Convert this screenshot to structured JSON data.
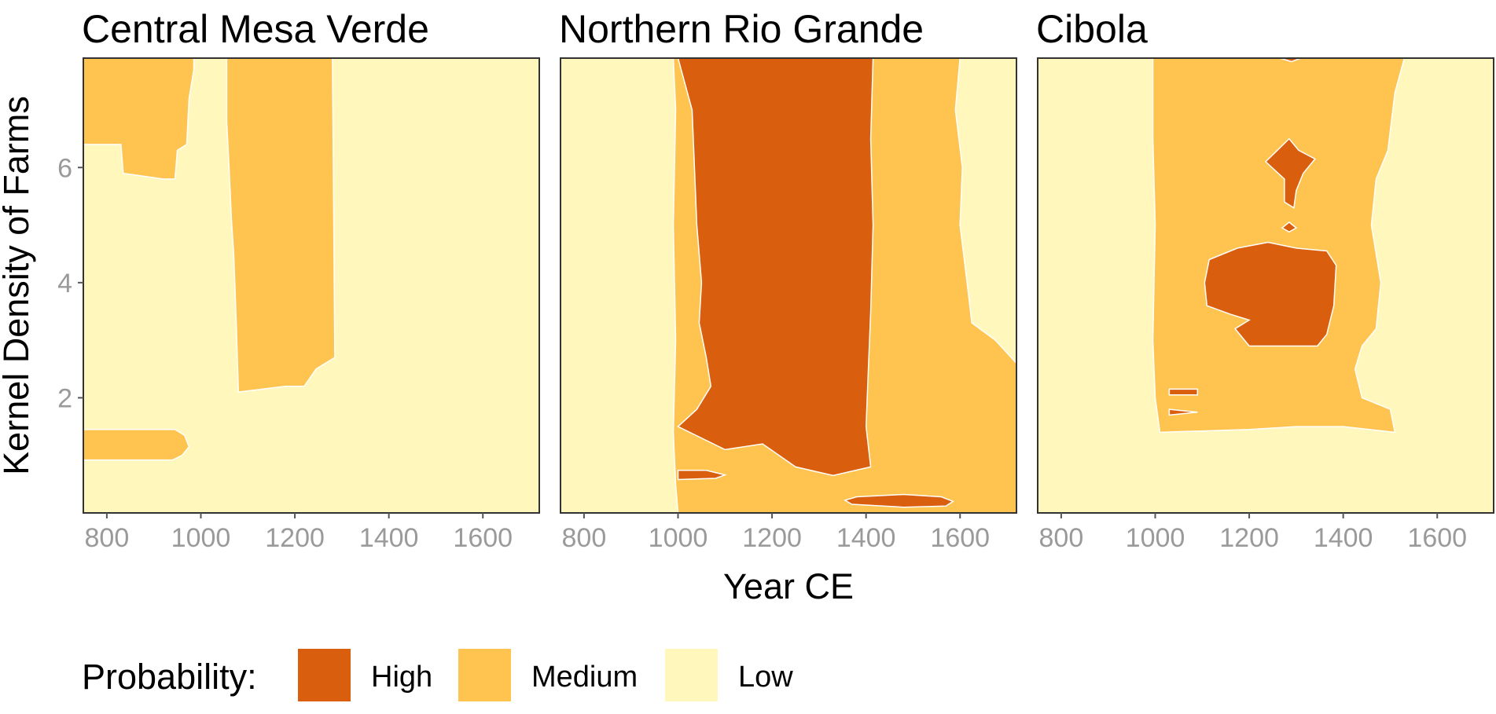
{
  "chart_data": {
    "type": "heatmap",
    "xlabel": "Year CE",
    "ylabel": "Kernel Density of Farms",
    "xlim": [
      750,
      1720
    ],
    "ylim": [
      0,
      7.9
    ],
    "x_ticks": [
      800,
      1000,
      1200,
      1400,
      1600
    ],
    "y_ticks": [
      2,
      4,
      6
    ],
    "grid": false,
    "legend": {
      "title": "Probability:",
      "position": "bottom",
      "entries": [
        {
          "label": "High",
          "color": "#d95f0e"
        },
        {
          "label": "Medium",
          "color": "#fec44f"
        },
        {
          "label": "Low",
          "color": "#fff7bc"
        }
      ]
    },
    "panels": [
      {
        "title": "Central Mesa Verde",
        "background": "low",
        "regions": [
          {
            "level": "medium",
            "points": [
              [
                750,
                6.4
              ],
              [
                830,
                6.4
              ],
              [
                835,
                5.9
              ],
              [
                920,
                5.8
              ],
              [
                945,
                5.8
              ],
              [
                950,
                6.3
              ],
              [
                970,
                6.4
              ],
              [
                975,
                7.2
              ],
              [
                985,
                7.7
              ],
              [
                985,
                7.9
              ],
              [
                750,
                7.9
              ]
            ]
          },
          {
            "level": "medium",
            "points": [
              [
                750,
                1.45
              ],
              [
                945,
                1.45
              ],
              [
                965,
                1.35
              ],
              [
                975,
                1.15
              ],
              [
                960,
                1.0
              ],
              [
                940,
                0.92
              ],
              [
                750,
                0.92
              ]
            ]
          },
          {
            "level": "medium",
            "points": [
              [
                1055,
                7.9
              ],
              [
                1280,
                7.9
              ],
              [
                1285,
                2.7
              ],
              [
                1245,
                2.5
              ],
              [
                1220,
                2.2
              ],
              [
                1180,
                2.2
              ],
              [
                1080,
                2.1
              ],
              [
                1075,
                3.4
              ],
              [
                1070,
                4.5
              ],
              [
                1065,
                5.1
              ],
              [
                1060,
                6.0
              ],
              [
                1055,
                6.8
              ]
            ]
          }
        ]
      },
      {
        "title": "Northern Rio Grande",
        "background": "low",
        "regions": [
          {
            "level": "medium",
            "points": [
              [
                990,
                7.9
              ],
              [
                1600,
                7.9
              ],
              [
                1590,
                7.0
              ],
              [
                1605,
                6.0
              ],
              [
                1600,
                5.0
              ],
              [
                1615,
                4.0
              ],
              [
                1625,
                3.3
              ],
              [
                1675,
                3.0
              ],
              [
                1720,
                2.6
              ],
              [
                1720,
                0
              ],
              [
                1000,
                0
              ],
              [
                995,
                0.5
              ],
              [
                990,
                1.4
              ],
              [
                995,
                3.0
              ],
              [
                990,
                5.0
              ],
              [
                995,
                7.0
              ]
            ]
          },
          {
            "level": "high",
            "points": [
              [
                1000,
                7.9
              ],
              [
                1415,
                7.9
              ],
              [
                1410,
                6.5
              ],
              [
                1415,
                5.0
              ],
              [
                1410,
                3.5
              ],
              [
                1405,
                2.5
              ],
              [
                1400,
                1.5
              ],
              [
                1410,
                0.8
              ],
              [
                1330,
                0.65
              ],
              [
                1250,
                0.8
              ],
              [
                1180,
                1.2
              ],
              [
                1100,
                1.1
              ],
              [
                1000,
                1.5
              ],
              [
                1040,
                1.8
              ],
              [
                1070,
                2.2
              ],
              [
                1060,
                2.7
              ],
              [
                1045,
                3.3
              ],
              [
                1050,
                4.0
              ],
              [
                1040,
                5.0
              ],
              [
                1035,
                6.0
              ],
              [
                1030,
                7.0
              ]
            ]
          },
          {
            "level": "high",
            "points": [
              [
                1000,
                0.58
              ],
              [
                1080,
                0.6
              ],
              [
                1100,
                0.66
              ],
              [
                1060,
                0.74
              ],
              [
                1000,
                0.74
              ]
            ]
          },
          {
            "level": "high",
            "points": [
              [
                1380,
                0.28
              ],
              [
                1480,
                0.32
              ],
              [
                1560,
                0.28
              ],
              [
                1585,
                0.2
              ],
              [
                1570,
                0.12
              ],
              [
                1480,
                0.1
              ],
              [
                1370,
                0.15
              ],
              [
                1355,
                0.22
              ]
            ]
          }
        ]
      },
      {
        "title": "Cibola",
        "background": "low",
        "regions": [
          {
            "level": "medium",
            "points": [
              [
                995,
                7.9
              ],
              [
                1530,
                7.9
              ],
              [
                1510,
                7.3
              ],
              [
                1495,
                6.3
              ],
              [
                1470,
                5.8
              ],
              [
                1460,
                5.0
              ],
              [
                1480,
                4.0
              ],
              [
                1470,
                3.2
              ],
              [
                1440,
                2.9
              ],
              [
                1425,
                2.5
              ],
              [
                1440,
                2.0
              ],
              [
                1500,
                1.8
              ],
              [
                1510,
                1.4
              ],
              [
                1400,
                1.5
              ],
              [
                1300,
                1.5
              ],
              [
                1200,
                1.45
              ],
              [
                1010,
                1.4
              ],
              [
                1000,
                2.0
              ],
              [
                995,
                3.0
              ],
              [
                1000,
                5.0
              ],
              [
                995,
                6.5
              ]
            ]
          },
          {
            "level": "high",
            "points": [
              [
                1115,
                4.4
              ],
              [
                1175,
                4.6
              ],
              [
                1240,
                4.7
              ],
              [
                1300,
                4.6
              ],
              [
                1365,
                4.55
              ],
              [
                1385,
                4.3
              ],
              [
                1380,
                3.6
              ],
              [
                1365,
                3.1
              ],
              [
                1345,
                2.9
              ],
              [
                1200,
                2.9
              ],
              [
                1170,
                3.2
              ],
              [
                1200,
                3.35
              ],
              [
                1160,
                3.45
              ],
              [
                1110,
                3.6
              ],
              [
                1105,
                4.0
              ]
            ]
          },
          {
            "level": "high",
            "points": [
              [
                1235,
                6.1
              ],
              [
                1260,
                6.3
              ],
              [
                1285,
                6.5
              ],
              [
                1305,
                6.3
              ],
              [
                1340,
                6.15
              ],
              [
                1315,
                5.9
              ],
              [
                1300,
                5.6
              ],
              [
                1295,
                5.3
              ],
              [
                1275,
                5.4
              ],
              [
                1275,
                5.8
              ]
            ]
          },
          {
            "level": "high",
            "points": [
              [
                1270,
                4.95
              ],
              [
                1285,
                5.05
              ],
              [
                1300,
                4.95
              ],
              [
                1285,
                4.88
              ]
            ]
          },
          {
            "level": "high",
            "points": [
              [
                1030,
                2.15
              ],
              [
                1090,
                2.15
              ],
              [
                1090,
                2.05
              ],
              [
                1030,
                2.05
              ]
            ]
          },
          {
            "level": "high",
            "points": [
              [
                1030,
                1.8
              ],
              [
                1090,
                1.75
              ],
              [
                1030,
                1.7
              ]
            ]
          },
          {
            "level": "high",
            "points": [
              [
                1265,
                7.9
              ],
              [
                1310,
                7.9
              ],
              [
                1290,
                7.84
              ]
            ]
          }
        ]
      }
    ]
  }
}
